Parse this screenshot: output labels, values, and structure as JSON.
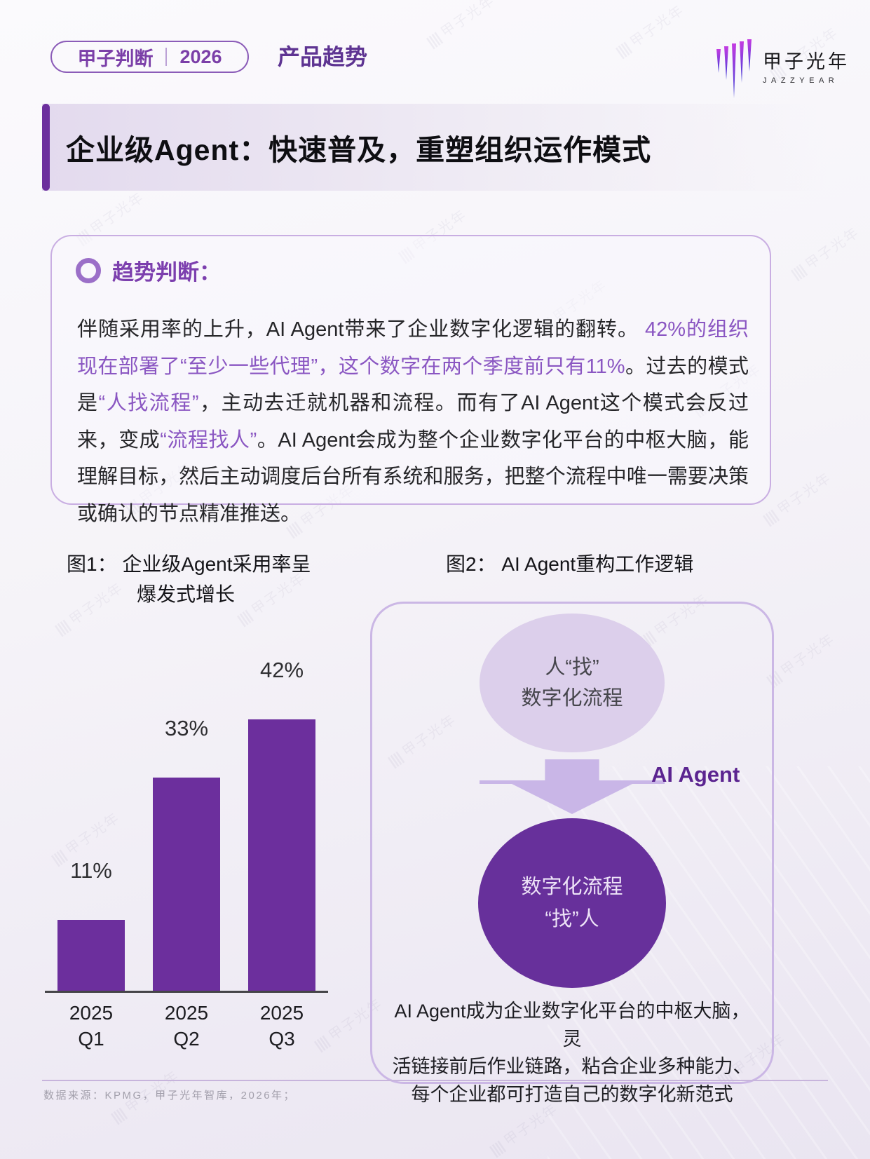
{
  "header": {
    "badge": {
      "label": "甲子判断",
      "year": "2026"
    },
    "section_label": "产品趋势",
    "logo": {
      "name": "甲子光年",
      "subname": "JAZZYEAR"
    }
  },
  "title": "企业级Agent：快速普及，重塑组织运作模式",
  "trend_box": {
    "heading": "趋势判断：",
    "paragraph_segments": [
      {
        "text": "伴随采用率的上升，AI Agent带来了企业数字化逻辑的翻转。 ",
        "cls": "seg-black"
      },
      {
        "text": "42%的组织现在部署了“至少一些代理”，这个数字在两个季度前只有11%",
        "cls": "seg-purple"
      },
      {
        "text": "。过去的模式是",
        "cls": "seg-black"
      },
      {
        "text": "“人找流程”",
        "cls": "seg-purple"
      },
      {
        "text": "，主动去迁就机器和流程。而有了AI Agent这个模式会反过来，变成",
        "cls": "seg-black"
      },
      {
        "text": "“流程找人”",
        "cls": "seg-purple"
      },
      {
        "text": "。AI Agent会成为整个企业数字化平台的中枢大脑，能理解目标，然后主动调度后台所有系统和服务，把整个流程中唯一需要决策或确认的节点精准推送。",
        "cls": "seg-black"
      }
    ]
  },
  "figure1": {
    "caption_line1": "图1： 企业级Agent采用率呈",
    "caption_line2": "爆发式增长"
  },
  "chart_data": {
    "type": "bar",
    "title": "企业级Agent采用率呈爆发式增长",
    "categories": [
      [
        "2025",
        "Q1"
      ],
      [
        "2025",
        "Q2"
      ],
      [
        "2025",
        "Q3"
      ]
    ],
    "values": [
      11,
      33,
      42
    ],
    "labels": [
      "11%",
      "33%",
      "42%"
    ],
    "unit": "%",
    "ylim": [
      0,
      45
    ],
    "grid": false,
    "bar_color": "#6C2F9D",
    "legend": "none"
  },
  "figure2": {
    "caption": "图2： AI Agent重构工作逻辑",
    "top_circle_line1": "人“找”",
    "top_circle_line2": "数字化流程",
    "arrow_label": "AI Agent",
    "bottom_circle_line1": "数字化流程",
    "bottom_circle_line2": "“找”人",
    "note_lines": [
      "AI Agent成为企业数字化平台的中枢大脑，灵",
      "活链接前后作业链路，粘合企业多种能力、",
      "每个企业都可打造自己的数字化新范式"
    ]
  },
  "footer": {
    "source": "数据来源：KPMG，甲子光年智库，2026年；"
  },
  "watermark": {
    "text": "甲子光年"
  },
  "colors": {
    "accent_purple": "#6C2F9D",
    "text_purple": "#8A56C2",
    "heading_purple": "#7C3FAE",
    "badge_purple": "#7B3FA8",
    "ai_agent_purple": "#5B2490",
    "light_circle": "#DCCFEB",
    "dark_circle": "#67309B",
    "arrow_lavender": "#C9B6E7",
    "box_border": "#C9AEE2"
  }
}
